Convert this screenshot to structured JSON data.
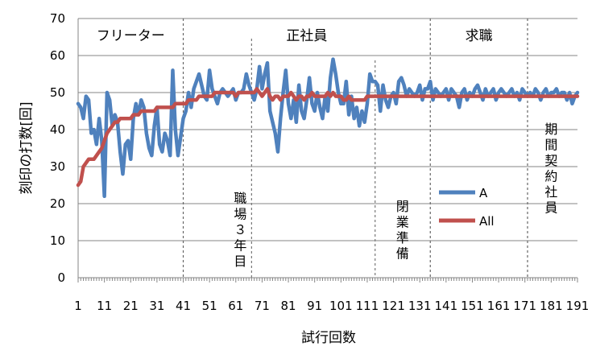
{
  "chart_data": {
    "type": "line",
    "title": "",
    "xlabel": "試行回数",
    "ylabel": "刻印の打数[回]",
    "ylim": [
      0,
      70
    ],
    "xlim": [
      1,
      191
    ],
    "yticks": [
      0,
      10,
      20,
      30,
      40,
      50,
      60,
      70
    ],
    "xtick_labels": [
      "1",
      "11",
      "21",
      "31",
      "41",
      "51",
      "61",
      "71",
      "81",
      "91",
      "101",
      "111",
      "121",
      "131",
      "141",
      "151",
      "161",
      "171",
      "181",
      "191"
    ],
    "grid": "horizontal",
    "legend_position": "center-right",
    "colors": {
      "A": "#4f81bd",
      "All": "#c0504d"
    },
    "regions": [
      {
        "label": "フリーター",
        "x_start": 1,
        "x_end": 41
      },
      {
        "label": "正社員",
        "x_start": 41,
        "x_end": 135
      },
      {
        "label": "求職",
        "x_start": 135,
        "x_end": 172
      },
      {
        "label": "",
        "x_start": 172,
        "x_end": 191
      }
    ],
    "dividers": [
      41,
      135,
      172
    ],
    "annotations": [
      {
        "text": "職場３年目",
        "x": 67
      },
      {
        "text": "閉業準備",
        "x": 114
      },
      {
        "text": "期間契約社員",
        "x": 181
      }
    ],
    "series": [
      {
        "name": "A",
        "values": [
          47,
          46,
          43,
          49,
          48,
          39,
          40,
          36,
          43,
          37,
          22,
          50,
          48,
          41,
          44,
          42,
          34,
          28,
          36,
          37,
          32,
          43,
          47,
          44,
          48,
          46,
          39,
          35,
          33,
          41,
          46,
          36,
          34,
          39,
          37,
          33,
          56,
          40,
          33,
          38,
          43,
          45,
          50,
          46,
          51,
          53,
          55,
          52,
          49,
          48,
          56,
          51,
          49,
          47,
          50,
          51,
          50,
          49,
          50,
          51,
          48,
          50,
          50,
          51,
          55,
          52,
          50,
          48,
          51,
          57,
          51,
          55,
          58,
          45,
          42,
          39,
          34,
          43,
          50,
          56,
          47,
          43,
          48,
          42,
          52,
          45,
          43,
          48,
          54,
          47,
          45,
          50,
          46,
          43,
          49,
          45,
          54,
          59,
          55,
          50,
          47,
          47,
          53,
          44,
          49,
          43,
          46,
          41,
          45,
          42,
          47,
          55,
          53,
          53,
          52,
          45,
          52,
          48,
          46,
          49,
          50,
          47,
          53,
          54,
          52,
          49,
          51,
          50,
          49,
          50,
          52,
          48,
          51,
          51,
          53,
          48,
          51,
          50,
          49,
          50,
          51,
          48,
          51,
          50,
          49,
          46,
          50,
          51,
          48,
          50,
          49,
          51,
          52,
          50,
          48,
          51,
          49,
          50,
          51,
          48,
          50,
          51,
          50,
          49,
          50,
          51,
          49,
          50,
          48,
          51,
          50,
          49,
          50,
          49,
          51,
          50,
          48,
          50,
          51,
          49,
          50,
          50,
          51,
          49,
          50,
          50,
          48,
          50,
          47,
          49,
          50
        ]
      },
      {
        "name": "All",
        "values": [
          25,
          26,
          30,
          31,
          32,
          32,
          32,
          33,
          34,
          35,
          37,
          39,
          40,
          41,
          42,
          42,
          43,
          43,
          43,
          43,
          43,
          44,
          44,
          44,
          45,
          45,
          45,
          45,
          45,
          45,
          46,
          46,
          46,
          46,
          46,
          46,
          46,
          47,
          47,
          47,
          47,
          47,
          48,
          48,
          48,
          48,
          49,
          49,
          49,
          49,
          49,
          49,
          50,
          50,
          50,
          50,
          50,
          50,
          50,
          50,
          49,
          50,
          50,
          50,
          50,
          50,
          50,
          50,
          51,
          50,
          49,
          50,
          51,
          49,
          48,
          49,
          49,
          48,
          49,
          49,
          49,
          50,
          49,
          48,
          49,
          49,
          48,
          49,
          49,
          50,
          49,
          49,
          49,
          49,
          49,
          50,
          49,
          50,
          49,
          49,
          49,
          48,
          48,
          49,
          48,
          48,
          48,
          48,
          48,
          48,
          49,
          49,
          49,
          49,
          49,
          49,
          49,
          49,
          49,
          49,
          49,
          49,
          49,
          49,
          49,
          49,
          49,
          49,
          49,
          49,
          49,
          49,
          49,
          49,
          49,
          49,
          49,
          49,
          49,
          49,
          49,
          49,
          49,
          49,
          49,
          49,
          49,
          49,
          49,
          49,
          49,
          49,
          49,
          49,
          49,
          49,
          49,
          49,
          49,
          49,
          49,
          49,
          49,
          49,
          49,
          49,
          49,
          49,
          49,
          49,
          49,
          49,
          49,
          49,
          49,
          49,
          49,
          49,
          49,
          49,
          49,
          49,
          49,
          49,
          49,
          49,
          49,
          49,
          49,
          49,
          49
        ]
      }
    ]
  }
}
